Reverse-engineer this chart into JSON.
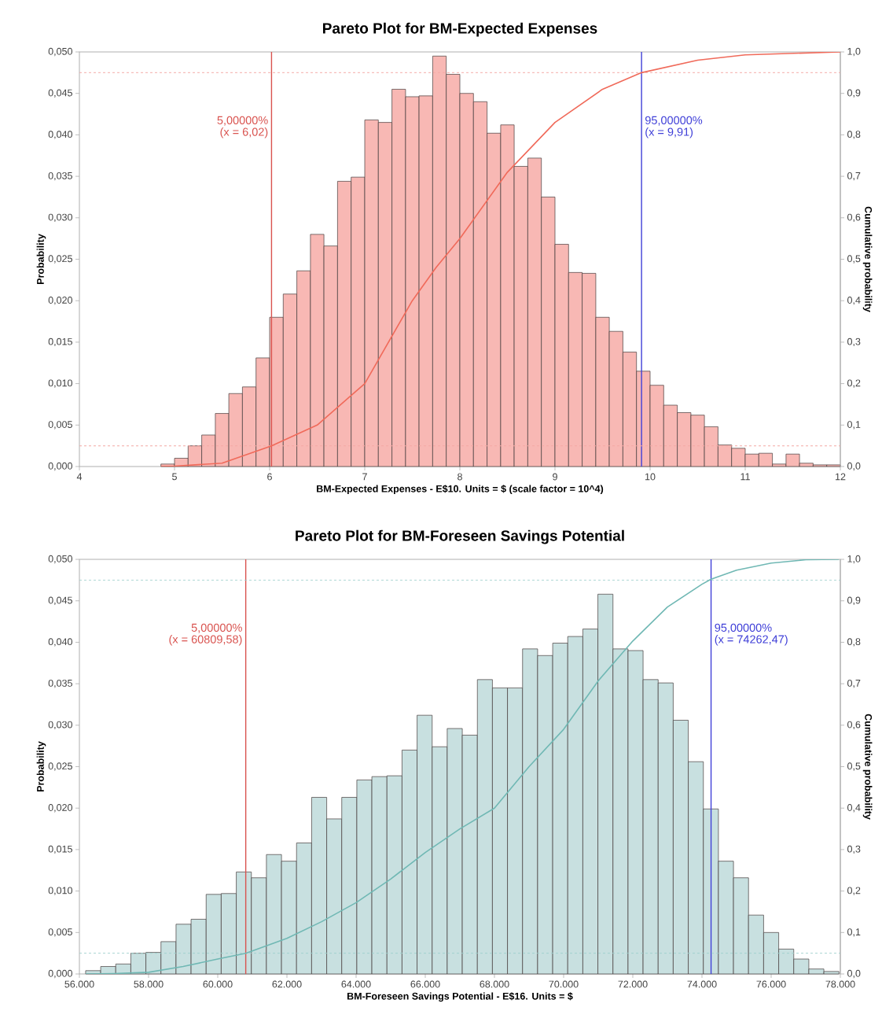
{
  "chart_data": [
    {
      "type": "histogram",
      "title": "Pareto Plot for BM-Expected Expenses",
      "xlabel": "BM-Expected Expenses - E$10.  Units = $ (scale factor = 10^4)",
      "ylabel": "Probability",
      "y2label": "Cumulative  probability",
      "xlim": [
        4,
        12
      ],
      "xticks": [
        4,
        5,
        6,
        7,
        8,
        9,
        10,
        11,
        12
      ],
      "ylim": [
        0,
        0.05
      ],
      "yticks": [
        {
          "value": 0,
          "label": "0,000"
        },
        {
          "value": 0.005,
          "label": "0,005"
        },
        {
          "value": 0.01,
          "label": "0,010"
        },
        {
          "value": 0.015,
          "label": "0,015"
        },
        {
          "value": 0.02,
          "label": "0,020"
        },
        {
          "value": 0.025,
          "label": "0,025"
        },
        {
          "value": 0.03,
          "label": "0,030"
        },
        {
          "value": 0.035,
          "label": "0,035"
        },
        {
          "value": 0.04,
          "label": "0,040"
        },
        {
          "value": 0.045,
          "label": "0,045"
        },
        {
          "value": 0.05,
          "label": "0,050"
        }
      ],
      "y2lim": [
        0,
        1
      ],
      "y2ticks": [
        {
          "value": 0,
          "label": "0,0"
        },
        {
          "value": 0.1,
          "label": "0,1"
        },
        {
          "value": 0.2,
          "label": "0,2"
        },
        {
          "value": 0.3,
          "label": "0,3"
        },
        {
          "value": 0.4,
          "label": "0,4"
        },
        {
          "value": 0.5,
          "label": "0,5"
        },
        {
          "value": 0.6,
          "label": "0,6"
        },
        {
          "value": 0.7,
          "label": "0,7"
        },
        {
          "value": 0.8,
          "label": "0,8"
        },
        {
          "value": 0.9,
          "label": "0,9"
        },
        {
          "value": 1,
          "label": "1,0"
        }
      ],
      "series": [
        {
          "color": "#f8b8b4",
          "bins": [
            4.857,
            5.0,
            5.143,
            5.286,
            5.429,
            5.571,
            5.714,
            5.857,
            6.0,
            6.143,
            6.286,
            6.429,
            6.571,
            6.714,
            6.857,
            7.0,
            7.143,
            7.286,
            7.429,
            7.571,
            7.714,
            7.857,
            8.0,
            8.143,
            8.286,
            8.429,
            8.571,
            8.714,
            8.857,
            9.0,
            9.143,
            9.286,
            9.429,
            9.571,
            9.714,
            9.857,
            10.0,
            10.143,
            10.286,
            10.429,
            10.571,
            10.714,
            10.857,
            11.0,
            11.143,
            11.286,
            11.429,
            11.571,
            11.714,
            11.857,
            12.0
          ],
          "values": [
            0.0003,
            0.001,
            0.0025,
            0.0038,
            0.0064,
            0.0088,
            0.0096,
            0.0131,
            0.018,
            0.0208,
            0.0236,
            0.028,
            0.0266,
            0.0344,
            0.0349,
            0.0418,
            0.0415,
            0.0455,
            0.0446,
            0.0447,
            0.0495,
            0.0473,
            0.045,
            0.044,
            0.0402,
            0.0412,
            0.0362,
            0.0372,
            0.0325,
            0.0268,
            0.0234,
            0.0233,
            0.018,
            0.0163,
            0.0138,
            0.0115,
            0.0098,
            0.0074,
            0.0065,
            0.0062,
            0.0048,
            0.0026,
            0.0022,
            0.0015,
            0.0016,
            0.0003,
            0.0015,
            0.0004,
            0.0002,
            0.0002
          ]
        },
        {
          "type": "line",
          "axis": "y2",
          "color": "#f06a5a",
          "x": [
            4.857,
            5.0,
            5.5,
            6.02,
            6.5,
            7.0,
            7.25,
            7.5,
            7.75,
            8.0,
            8.5,
            9.0,
            9.5,
            9.91,
            10.5,
            11.0,
            12.0
          ],
          "values": [
            0,
            0.001,
            0.008,
            0.05,
            0.1,
            0.2,
            0.3,
            0.4,
            0.48,
            0.55,
            0.71,
            0.83,
            0.91,
            0.95,
            0.98,
            0.993,
            1.0
          ]
        }
      ],
      "ref_lines": [
        {
          "axis": "x",
          "value": 6.02,
          "label": "5,00000%",
          "color": "#d9534f"
        },
        {
          "axis": "x",
          "value": 9.91,
          "label": "95,00000%",
          "color": "#4040d8"
        },
        {
          "axis": "y2",
          "value": 0.05,
          "color": "#f4a8a4",
          "line_style": "dashed"
        },
        {
          "axis": "y2",
          "value": 0.95,
          "color": "#f4a8a4",
          "line_style": "dashed"
        }
      ],
      "annotations": [
        {
          "text": "(x = 6,02)",
          "x": 6.02,
          "y": 0.041
        },
        {
          "text": "(x = 9,91)",
          "x": 9.91,
          "y": 0.041
        }
      ]
    },
    {
      "type": "histogram",
      "title": "Pareto Plot for BM-Foreseen Savings Potential",
      "xlabel": "BM-Foreseen Savings Potential - E$16.  Units = $",
      "ylabel": "Probability",
      "y2label": "Cumulative  probability",
      "xlim": [
        56000,
        78000
      ],
      "xticks": [
        {
          "value": 56000,
          "label": "56.000"
        },
        {
          "value": 58000,
          "label": "58.000"
        },
        {
          "value": 60000,
          "label": "60.000"
        },
        {
          "value": 62000,
          "label": "62.000"
        },
        {
          "value": 64000,
          "label": "64.000"
        },
        {
          "value": 66000,
          "label": "66.000"
        },
        {
          "value": 68000,
          "label": "68.000"
        },
        {
          "value": 70000,
          "label": "70.000"
        },
        {
          "value": 72000,
          "label": "72.000"
        },
        {
          "value": 74000,
          "label": "74.000"
        },
        {
          "value": 76000,
          "label": "76.000"
        },
        {
          "value": 78000,
          "label": "78.000"
        }
      ],
      "ylim": [
        0,
        0.05
      ],
      "yticks": [
        {
          "value": 0,
          "label": "0,000"
        },
        {
          "value": 0.005,
          "label": "0,005"
        },
        {
          "value": 0.01,
          "label": "0,010"
        },
        {
          "value": 0.015,
          "label": "0,015"
        },
        {
          "value": 0.02,
          "label": "0,020"
        },
        {
          "value": 0.025,
          "label": "0,025"
        },
        {
          "value": 0.03,
          "label": "0,030"
        },
        {
          "value": 0.035,
          "label": "0,035"
        },
        {
          "value": 0.04,
          "label": "0,040"
        },
        {
          "value": 0.045,
          "label": "0,045"
        },
        {
          "value": 0.05,
          "label": "0,050"
        }
      ],
      "y2lim": [
        0,
        1
      ],
      "y2ticks": [
        {
          "value": 0,
          "label": "0,0"
        },
        {
          "value": 0.1,
          "label": "0,1"
        },
        {
          "value": 0.2,
          "label": "0,2"
        },
        {
          "value": 0.3,
          "label": "0,3"
        },
        {
          "value": 0.4,
          "label": "0,4"
        },
        {
          "value": 0.5,
          "label": "0,5"
        },
        {
          "value": 0.6,
          "label": "0,6"
        },
        {
          "value": 0.7,
          "label": "0,7"
        },
        {
          "value": 0.8,
          "label": "0,8"
        },
        {
          "value": 0.9,
          "label": "0,9"
        },
        {
          "value": 1,
          "label": "1,0"
        }
      ],
      "series": [
        {
          "color": "#c8e0e0",
          "bins": [
            56180,
            56616,
            57051,
            57487,
            57922,
            58358,
            58794,
            59229,
            59665,
            60100,
            60536,
            60972,
            61407,
            61843,
            62278,
            62714,
            63150,
            63585,
            64021,
            64456,
            64892,
            65328,
            65763,
            66199,
            66634,
            67070,
            67506,
            67941,
            68377,
            68812,
            69248,
            69684,
            70119,
            70555,
            70990,
            71426,
            71862,
            72297,
            72733,
            73168,
            73604,
            74040,
            74475,
            74911,
            75346,
            75782,
            76218,
            76653,
            77089,
            77524,
            77960
          ],
          "values": [
            0.0004,
            0.0009,
            0.0012,
            0.0025,
            0.0026,
            0.0039,
            0.006,
            0.0066,
            0.0096,
            0.0097,
            0.0123,
            0.0116,
            0.0144,
            0.0136,
            0.0158,
            0.0213,
            0.0187,
            0.0213,
            0.0234,
            0.0238,
            0.0239,
            0.027,
            0.0312,
            0.0274,
            0.0296,
            0.0288,
            0.0355,
            0.0345,
            0.0345,
            0.0392,
            0.0384,
            0.0399,
            0.0407,
            0.0416,
            0.0458,
            0.0392,
            0.039,
            0.0355,
            0.0351,
            0.0306,
            0.0256,
            0.0199,
            0.0136,
            0.0116,
            0.0071,
            0.005,
            0.003,
            0.0018,
            0.0006,
            0.0003
          ]
        },
        {
          "type": "line",
          "axis": "y2",
          "color": "#70b8b4",
          "x": [
            56180,
            57000,
            58000,
            59000,
            60000,
            60810,
            62000,
            63000,
            64000,
            65000,
            66000,
            67000,
            68000,
            69000,
            70000,
            71000,
            72000,
            73000,
            74000,
            74262,
            75000,
            76000,
            77000,
            77960
          ],
          "values": [
            0,
            0.001,
            0.004,
            0.018,
            0.036,
            0.05,
            0.086,
            0.126,
            0.172,
            0.229,
            0.293,
            0.35,
            0.4,
            0.5,
            0.59,
            0.707,
            0.803,
            0.885,
            0.94,
            0.952,
            0.974,
            0.991,
            0.999,
            1.0
          ]
        }
      ],
      "ref_lines": [
        {
          "axis": "x",
          "value": 60809.58,
          "label": "5,00000%",
          "color": "#d9534f"
        },
        {
          "axis": "x",
          "value": 74262.47,
          "label": "95,00000%",
          "color": "#4040d8"
        },
        {
          "axis": "y2",
          "value": 0.05,
          "color": "#9ccfcc",
          "line_style": "dashed"
        },
        {
          "axis": "y2",
          "value": 0.95,
          "color": "#9ccfcc",
          "line_style": "dashed"
        }
      ],
      "annotations": [
        {
          "text": "(x = 60809,58)",
          "x": 60809.58,
          "y": 0.041
        },
        {
          "text": "(x = 74262,47)",
          "x": 74262.47,
          "y": 0.041
        }
      ]
    }
  ]
}
